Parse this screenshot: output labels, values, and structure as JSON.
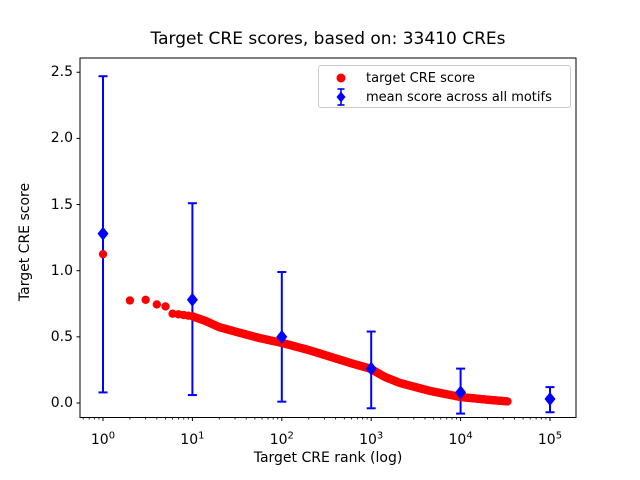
{
  "figure": {
    "kind": "matplotlib-style scatter figure",
    "background": "#ffffff"
  },
  "chart": {
    "title": "Target CRE scores, based on: 33410 CREs",
    "xlabel": "Target CRE rank (log)",
    "ylabel": "Target CRE score"
  },
  "legend": {
    "items": [
      {
        "label": "target CRE score",
        "marker": "red-circle",
        "color": "#ff0000"
      },
      {
        "label": "mean score across all motifs",
        "marker": "blue-diamond-errorbar",
        "color": "#0000ff"
      }
    ]
  },
  "chart_data": {
    "type": "scatter",
    "title": "Target CRE scores, based on: 33410 CREs",
    "xlabel": "Target CRE rank (log)",
    "ylabel": "Target CRE score",
    "x_scale": "log",
    "xlim": [
      0.55,
      195000
    ],
    "ylim": [
      -0.11,
      2.61
    ],
    "x_tick_exponents": [
      0,
      1,
      2,
      3,
      4,
      5
    ],
    "y_tick_values": [
      0.0,
      0.5,
      1.0,
      1.5,
      2.0,
      2.5
    ],
    "y_tick_labels": [
      "0.0",
      "0.5",
      "1.0",
      "1.5",
      "2.0",
      "2.5"
    ],
    "grid": false,
    "legend_position": "upper right",
    "n_points_total": 33410,
    "series": [
      {
        "name": "target CRE score",
        "type": "scatter",
        "marker": "circle",
        "color": "#ff0000",
        "anchor_points": [
          [
            1,
            1.125
          ],
          [
            2,
            0.775
          ],
          [
            3,
            0.78
          ],
          [
            4,
            0.745
          ],
          [
            5,
            0.73
          ],
          [
            6,
            0.675
          ],
          [
            7,
            0.67
          ],
          [
            8,
            0.665
          ],
          [
            9,
            0.66
          ],
          [
            10,
            0.655
          ],
          [
            14,
            0.62
          ],
          [
            20,
            0.573
          ],
          [
            34,
            0.53
          ],
          [
            57,
            0.49
          ],
          [
            103,
            0.452
          ],
          [
            200,
            0.4
          ],
          [
            347,
            0.35
          ],
          [
            600,
            0.3
          ],
          [
            970,
            0.26
          ],
          [
            1430,
            0.196
          ],
          [
            2100,
            0.151
          ],
          [
            4550,
            0.091
          ],
          [
            10000,
            0.045
          ],
          [
            21400,
            0.023
          ],
          [
            33410,
            0.012
          ]
        ]
      },
      {
        "name": "mean score across all motifs",
        "type": "errorbar",
        "marker": "diamond",
        "color": "#0000ff",
        "points": [
          {
            "x": 1,
            "mean": 1.28,
            "lo": 0.08,
            "hi": 2.47
          },
          {
            "x": 10,
            "mean": 0.78,
            "lo": 0.06,
            "hi": 1.51
          },
          {
            "x": 100,
            "mean": 0.5,
            "lo": 0.01,
            "hi": 0.99
          },
          {
            "x": 1000,
            "mean": 0.26,
            "lo": -0.04,
            "hi": 0.54
          },
          {
            "x": 10000,
            "mean": 0.08,
            "lo": -0.08,
            "hi": 0.26
          },
          {
            "x": 100000,
            "mean": 0.03,
            "lo": -0.07,
            "hi": 0.12
          }
        ]
      }
    ]
  }
}
